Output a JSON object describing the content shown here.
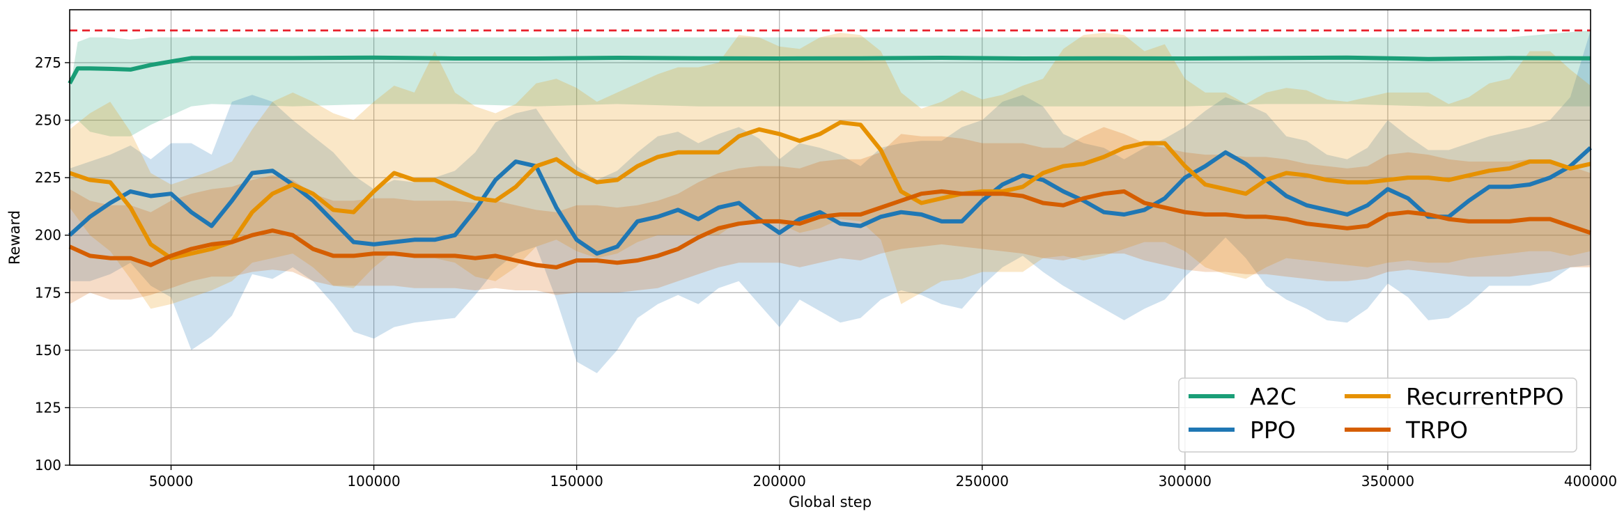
{
  "chart_data": {
    "type": "line",
    "xlabel": "Global step",
    "ylabel": "Reward",
    "xlim": [
      25000,
      400000
    ],
    "ylim": [
      100,
      298
    ],
    "x_ticks": [
      50000,
      100000,
      150000,
      200000,
      250000,
      300000,
      350000,
      400000
    ],
    "y_ticks": [
      100,
      125,
      150,
      175,
      200,
      225,
      250,
      275
    ],
    "grid": true,
    "legend_position": "bottom-right",
    "legend_columns": 2,
    "reference_line": {
      "y": 289,
      "color": "#e8222c",
      "style": "dashed"
    },
    "series": [
      {
        "name": "A2C",
        "color": "#1a9e77",
        "x": [
          25000,
          27000,
          30000,
          35000,
          40000,
          45000,
          50000,
          55000,
          60000,
          80000,
          100000,
          120000,
          140000,
          160000,
          180000,
          200000,
          220000,
          240000,
          260000,
          280000,
          300000,
          320000,
          340000,
          360000,
          380000,
          400000
        ],
        "y": [
          266,
          272.5,
          272.5,
          272.3,
          272,
          274,
          275.5,
          277,
          277,
          277,
          277.2,
          276.8,
          276.8,
          277.1,
          276.9,
          276.8,
          276.9,
          277.1,
          276.8,
          276.9,
          276.8,
          277,
          277.2,
          276.6,
          277,
          276.9
        ],
        "upper": [
          263,
          284,
          286,
          286,
          285,
          286,
          286,
          286,
          286,
          286,
          286,
          286,
          286,
          286,
          286,
          286,
          286,
          286,
          286,
          286,
          286,
          286,
          286,
          286,
          286,
          289
        ],
        "lower": [
          248,
          250,
          245,
          243,
          243,
          248,
          252,
          256,
          257,
          256,
          257,
          257,
          256,
          257,
          256,
          256,
          256,
          256,
          256,
          256,
          256,
          257,
          257,
          256,
          256,
          256
        ]
      },
      {
        "name": "PPO",
        "color": "#1f77b4",
        "x": [
          25000,
          30000,
          35000,
          40000,
          45000,
          50000,
          55000,
          60000,
          65000,
          70000,
          75000,
          80000,
          85000,
          90000,
          95000,
          100000,
          105000,
          110000,
          115000,
          120000,
          125000,
          130000,
          135000,
          140000,
          145000,
          150000,
          155000,
          160000,
          165000,
          170000,
          175000,
          180000,
          185000,
          190000,
          195000,
          200000,
          205000,
          210000,
          215000,
          220000,
          225000,
          230000,
          235000,
          240000,
          245000,
          250000,
          255000,
          260000,
          265000,
          270000,
          275000,
          280000,
          285000,
          290000,
          295000,
          300000,
          305000,
          310000,
          315000,
          320000,
          325000,
          330000,
          335000,
          340000,
          345000,
          350000,
          355000,
          360000,
          365000,
          370000,
          375000,
          380000,
          385000,
          390000,
          395000,
          400000
        ],
        "y": [
          200,
          208,
          214,
          219,
          217,
          218,
          210,
          204,
          215,
          227,
          228,
          222,
          215,
          206,
          197,
          196,
          197,
          198,
          198,
          200,
          211,
          224,
          232,
          230,
          212,
          198,
          192,
          195,
          206,
          208,
          211,
          207,
          212,
          214,
          207,
          201,
          207,
          210,
          205,
          204,
          208,
          210,
          209,
          206,
          206,
          215,
          222,
          226,
          224,
          219,
          215,
          210,
          209,
          211,
          216,
          225,
          230,
          236,
          231,
          224,
          217,
          213,
          211,
          209,
          213,
          220,
          216,
          208,
          208,
          215,
          221,
          221,
          222,
          225,
          230,
          238
        ],
        "upper": [
          229,
          232,
          235,
          239,
          233,
          240,
          240,
          235,
          258,
          261,
          258,
          250,
          243,
          236,
          226,
          220,
          224,
          223,
          225,
          228,
          236,
          249,
          253,
          255,
          242,
          230,
          224,
          228,
          236,
          243,
          245,
          240,
          244,
          247,
          242,
          233,
          240,
          238,
          235,
          230,
          238,
          240,
          241,
          241,
          247,
          250,
          258,
          261,
          256,
          244,
          240,
          238,
          233,
          238,
          242,
          247,
          254,
          260,
          257,
          253,
          243,
          241,
          235,
          233,
          238,
          250,
          243,
          237,
          237,
          240,
          243,
          245,
          247,
          250,
          260,
          289
        ],
        "lower": [
          180,
          180,
          183,
          188,
          178,
          173,
          150,
          156,
          165,
          183,
          181,
          186,
          180,
          170,
          158,
          155,
          160,
          162,
          163,
          164,
          174,
          185,
          192,
          195,
          172,
          145,
          140,
          150,
          164,
          170,
          174,
          170,
          177,
          180,
          170,
          160,
          172,
          167,
          162,
          164,
          172,
          176,
          174,
          170,
          168,
          178,
          186,
          191,
          184,
          178,
          173,
          168,
          163,
          168,
          172,
          182,
          190,
          199,
          190,
          178,
          172,
          168,
          163,
          162,
          168,
          179,
          173,
          163,
          164,
          170,
          178,
          178,
          178,
          180,
          186,
          187
        ]
      },
      {
        "name": "RecurrentPPO",
        "color": "#e69100",
        "x": [
          25000,
          30000,
          35000,
          40000,
          45000,
          50000,
          55000,
          60000,
          65000,
          70000,
          75000,
          80000,
          85000,
          90000,
          95000,
          100000,
          105000,
          110000,
          115000,
          120000,
          125000,
          130000,
          135000,
          140000,
          145000,
          150000,
          155000,
          160000,
          165000,
          170000,
          175000,
          180000,
          185000,
          190000,
          195000,
          200000,
          205000,
          210000,
          215000,
          220000,
          225000,
          230000,
          235000,
          240000,
          245000,
          250000,
          255000,
          260000,
          265000,
          270000,
          275000,
          280000,
          285000,
          290000,
          295000,
          300000,
          305000,
          310000,
          315000,
          320000,
          325000,
          330000,
          335000,
          340000,
          345000,
          350000,
          355000,
          360000,
          365000,
          370000,
          375000,
          380000,
          385000,
          390000,
          395000,
          400000
        ],
        "y": [
          227,
          224,
          223,
          212,
          196,
          190,
          192,
          194,
          197,
          210,
          218,
          222,
          218,
          211,
          210,
          219,
          227,
          224,
          224,
          220,
          216,
          215,
          221,
          230,
          233,
          227,
          223,
          224,
          230,
          234,
          236,
          236,
          236,
          243,
          246,
          244,
          241,
          244,
          249,
          248,
          237,
          219,
          214,
          216,
          218,
          219,
          219,
          221,
          227,
          230,
          231,
          234,
          238,
          240,
          240,
          230,
          222,
          220,
          218,
          224,
          227,
          226,
          224,
          223,
          223,
          224,
          225,
          225,
          224,
          226,
          228,
          229,
          232,
          232,
          229,
          231
        ],
        "upper": [
          246,
          253,
          258,
          245,
          227,
          222,
          225,
          228,
          232,
          246,
          258,
          262,
          258,
          253,
          250,
          258,
          265,
          262,
          280,
          262,
          256,
          253,
          257,
          266,
          268,
          264,
          258,
          262,
          266,
          270,
          273,
          273,
          275,
          287,
          286,
          282,
          281,
          286,
          288,
          287,
          280,
          262,
          255,
          258,
          263,
          259,
          261,
          265,
          268,
          281,
          287,
          288,
          287,
          280,
          283,
          268,
          262,
          262,
          257,
          262,
          264,
          263,
          259,
          258,
          260,
          262,
          262,
          262,
          257,
          260,
          266,
          268,
          280,
          280,
          272,
          265
        ],
        "lower": [
          212,
          200,
          193,
          181,
          168,
          170,
          173,
          176,
          180,
          188,
          190,
          192,
          186,
          178,
          177,
          186,
          193,
          190,
          190,
          188,
          182,
          180,
          186,
          195,
          198,
          193,
          190,
          192,
          197,
          200,
          200,
          200,
          200,
          206,
          207,
          205,
          201,
          203,
          207,
          206,
          198,
          170,
          175,
          180,
          181,
          184,
          184,
          184,
          190,
          191,
          189,
          191,
          194,
          197,
          197,
          193,
          186,
          183,
          181,
          186,
          190,
          189,
          188,
          187,
          186,
          188,
          189,
          188,
          188,
          190,
          191,
          192,
          193,
          193,
          191,
          193
        ]
      },
      {
        "name": "TRPO",
        "color": "#d55e00",
        "x": [
          25000,
          30000,
          35000,
          40000,
          45000,
          50000,
          55000,
          60000,
          65000,
          70000,
          75000,
          80000,
          85000,
          90000,
          95000,
          100000,
          105000,
          110000,
          115000,
          120000,
          125000,
          130000,
          135000,
          140000,
          145000,
          150000,
          155000,
          160000,
          165000,
          170000,
          175000,
          180000,
          185000,
          190000,
          195000,
          200000,
          205000,
          210000,
          215000,
          220000,
          225000,
          230000,
          235000,
          240000,
          245000,
          250000,
          255000,
          260000,
          265000,
          270000,
          275000,
          280000,
          285000,
          290000,
          295000,
          300000,
          305000,
          310000,
          315000,
          320000,
          325000,
          330000,
          335000,
          340000,
          345000,
          350000,
          355000,
          360000,
          365000,
          370000,
          375000,
          380000,
          385000,
          390000,
          395000,
          400000
        ],
        "y": [
          195,
          191,
          190,
          190,
          187,
          191,
          194,
          196,
          197,
          200,
          202,
          200,
          194,
          191,
          191,
          192,
          192,
          191,
          191,
          191,
          190,
          191,
          189,
          187,
          186,
          189,
          189,
          188,
          189,
          191,
          194,
          199,
          203,
          205,
          206,
          206,
          205,
          208,
          209,
          209,
          212,
          215,
          218,
          219,
          218,
          218,
          218,
          217,
          214,
          213,
          216,
          218,
          219,
          214,
          212,
          210,
          209,
          209,
          208,
          208,
          207,
          205,
          204,
          203,
          204,
          209,
          210,
          209,
          207,
          206,
          206,
          206,
          207,
          207,
          204,
          201
        ],
        "upper": [
          220,
          215,
          213,
          213,
          210,
          215,
          218,
          220,
          221,
          224,
          226,
          224,
          218,
          215,
          215,
          216,
          216,
          215,
          215,
          215,
          214,
          215,
          213,
          211,
          210,
          213,
          213,
          212,
          213,
          215,
          218,
          223,
          227,
          229,
          230,
          230,
          229,
          232,
          233,
          233,
          236,
          244,
          243,
          243,
          242,
          240,
          240,
          240,
          238,
          238,
          243,
          247,
          244,
          240,
          238,
          236,
          235,
          235,
          234,
          234,
          233,
          231,
          230,
          229,
          230,
          235,
          236,
          235,
          233,
          232,
          232,
          232,
          233,
          233,
          230,
          227
        ],
        "lower": [
          170,
          175,
          172,
          172,
          174,
          177,
          180,
          182,
          182,
          184,
          185,
          184,
          180,
          178,
          178,
          178,
          178,
          177,
          177,
          177,
          176,
          177,
          176,
          176,
          174,
          175,
          175,
          175,
          176,
          177,
          180,
          183,
          186,
          188,
          188,
          188,
          186,
          188,
          190,
          189,
          192,
          194,
          195,
          196,
          195,
          194,
          193,
          192,
          190,
          189,
          191,
          192,
          192,
          189,
          187,
          185,
          184,
          184,
          183,
          183,
          182,
          181,
          180,
          180,
          181,
          184,
          185,
          184,
          183,
          182,
          182,
          182,
          183,
          184,
          186,
          186
        ]
      }
    ]
  }
}
